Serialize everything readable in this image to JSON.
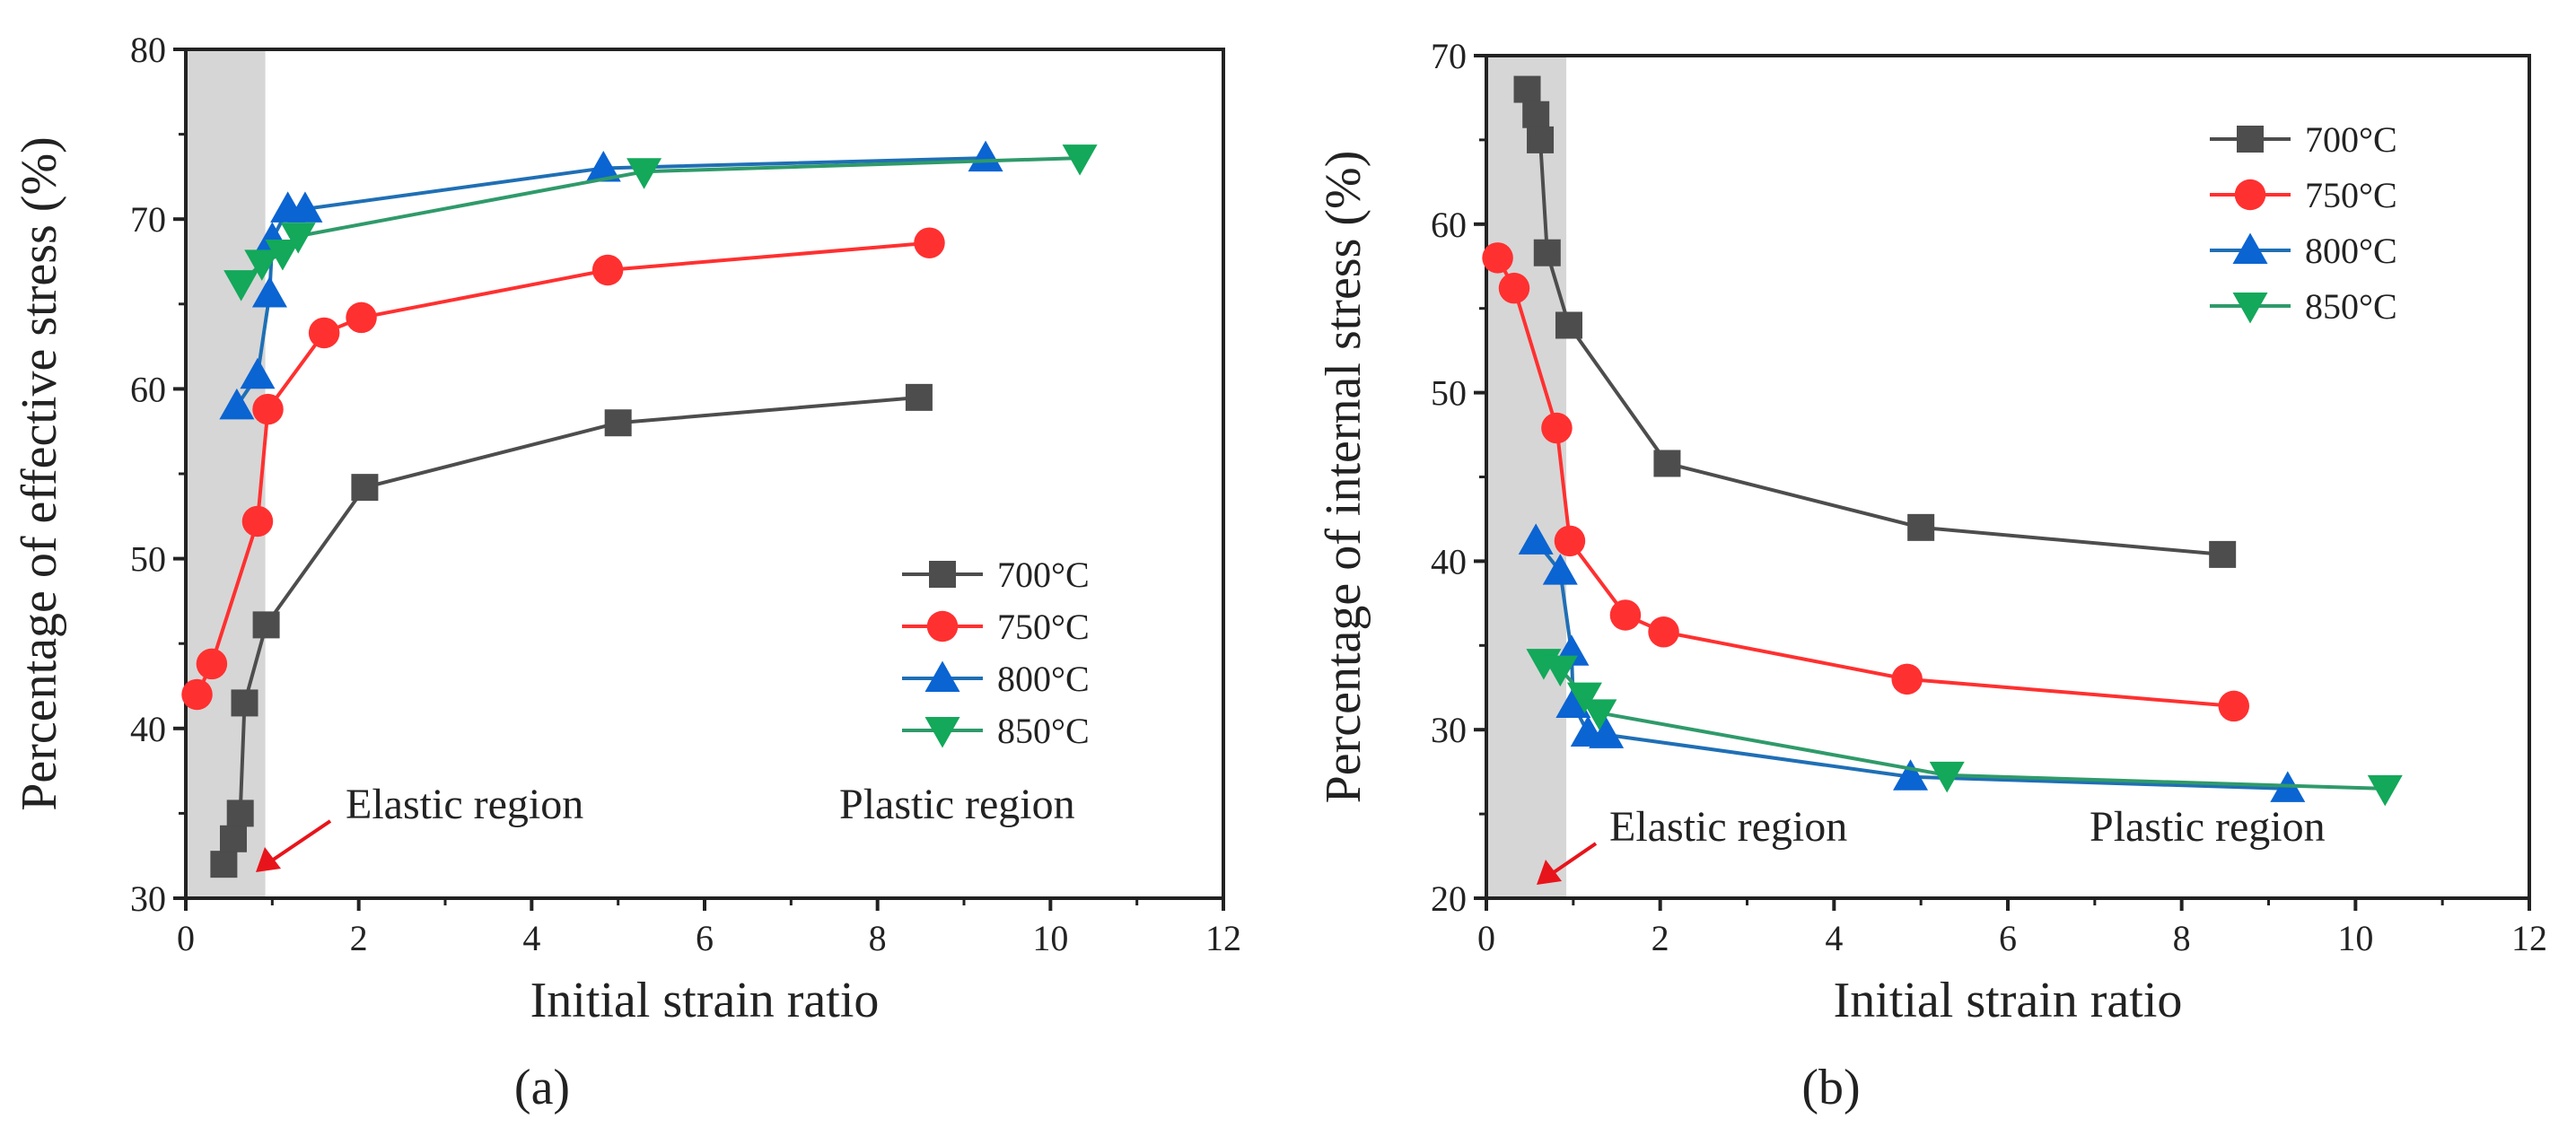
{
  "colors": {
    "700": "#4d4d4d",
    "750": "#ff3030",
    "800": "#0a64d2",
    "850": "#13a85a",
    "line800": "#1f6fb5",
    "line850": "#2f9a6a",
    "shade": "#d6d6d6",
    "arrow": "#e8141b"
  },
  "chart_data": [
    {
      "type": "line",
      "caption": "(a)",
      "xlabel": "Initial strain ratio",
      "ylabel": "Percentage of effective stress (%)",
      "xlim": [
        0,
        12
      ],
      "ylim": [
        30,
        80
      ],
      "xticks": [
        0,
        2,
        4,
        6,
        8,
        10,
        12
      ],
      "yticks": [
        30,
        40,
        50,
        60,
        70,
        80
      ],
      "shaded_region_x": [
        0,
        0.92
      ],
      "legend_position": "right-middle",
      "annotations": {
        "elastic": "Elastic region",
        "plastic": "Plastic region"
      },
      "series": [
        {
          "name": "700°C",
          "key": "700",
          "marker": "square",
          "x": [
            0.44,
            0.55,
            0.63,
            0.68,
            0.93,
            2.07,
            5.0,
            8.48
          ],
          "y": [
            32,
            33.5,
            35,
            41.5,
            46.1,
            54.2,
            58,
            59.5
          ]
        },
        {
          "name": "750°C",
          "key": "750",
          "marker": "circle",
          "x": [
            0.13,
            0.3,
            0.83,
            0.95,
            1.6,
            2.03,
            4.88,
            8.6
          ],
          "y": [
            42,
            43.8,
            52.2,
            58.8,
            63.3,
            64.2,
            67,
            68.6
          ]
        },
        {
          "name": "800°C",
          "key": "800",
          "marker": "triangle-up",
          "x": [
            0.59,
            0.83,
            0.97,
            1.0,
            1.18,
            1.38,
            4.83,
            9.25
          ],
          "y": [
            59,
            60.8,
            65.6,
            68.8,
            70.6,
            70.6,
            73,
            73.6
          ]
        },
        {
          "name": "850°C",
          "key": "850",
          "marker": "triangle-down",
          "x": [
            0.64,
            0.88,
            1.12,
            1.3,
            5.3,
            10.34
          ],
          "y": [
            66.2,
            67.4,
            68,
            69,
            72.8,
            73.6
          ]
        }
      ]
    },
    {
      "type": "line",
      "caption": "(b)",
      "xlabel": "Initial strain ratio",
      "ylabel": "Percentage of internal stress (%)",
      "xlim": [
        0,
        12
      ],
      "ylim": [
        20,
        70
      ],
      "xticks": [
        0,
        2,
        4,
        6,
        8,
        10,
        12
      ],
      "yticks": [
        20,
        30,
        40,
        50,
        60,
        70
      ],
      "shaded_region_x": [
        0,
        0.92
      ],
      "legend_position": "top-right",
      "annotations": {
        "elastic": "Elastic region",
        "plastic": "Plastic region"
      },
      "series": [
        {
          "name": "700°C",
          "key": "700",
          "marker": "square",
          "x": [
            0.47,
            0.57,
            0.62,
            0.7,
            0.95,
            2.08,
            5.0,
            8.47
          ],
          "y": [
            68,
            66.5,
            65,
            58.3,
            54,
            45.8,
            42,
            40.4
          ]
        },
        {
          "name": "750°C",
          "key": "750",
          "marker": "circle",
          "x": [
            0.13,
            0.32,
            0.81,
            0.96,
            1.6,
            2.04,
            4.84,
            8.6
          ],
          "y": [
            58,
            56.2,
            47.9,
            41.2,
            36.8,
            35.8,
            33,
            31.4
          ]
        },
        {
          "name": "800°C",
          "key": "800",
          "marker": "triangle-up",
          "x": [
            0.57,
            0.85,
            0.98,
            1.0,
            1.17,
            1.38,
            4.88,
            9.22
          ],
          "y": [
            41.2,
            39.4,
            34.6,
            31.5,
            29.8,
            29.7,
            27.2,
            26.5
          ]
        },
        {
          "name": "850°C",
          "key": "850",
          "marker": "triangle-down",
          "x": [
            0.66,
            0.85,
            1.13,
            1.3,
            5.3,
            10.34
          ],
          "y": [
            34,
            33.6,
            32,
            31,
            27.3,
            26.5
          ]
        }
      ]
    }
  ]
}
